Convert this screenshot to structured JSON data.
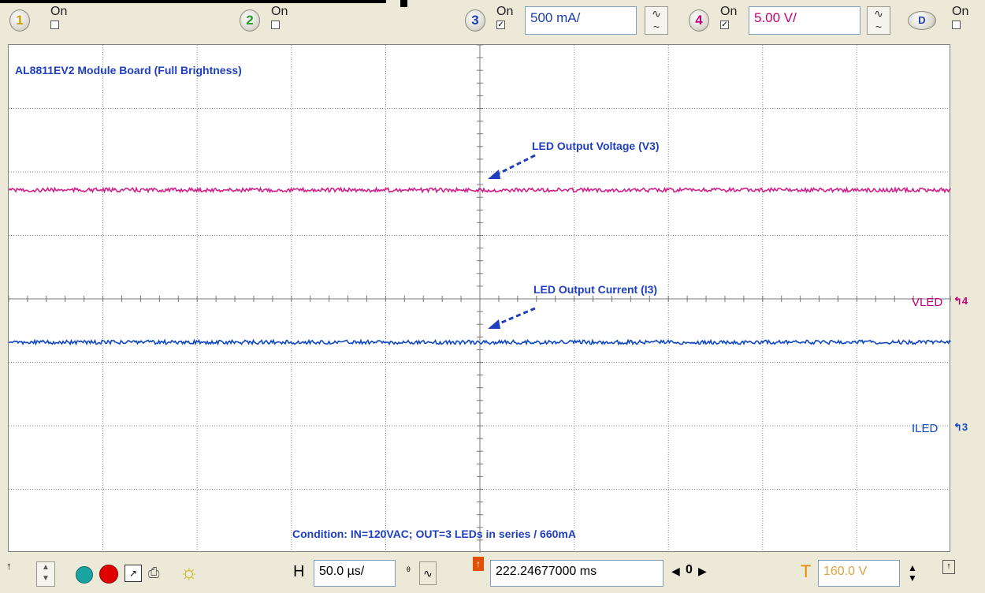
{
  "channels": [
    {
      "num": "1",
      "on_label": "On",
      "checked": "",
      "color": "#c8a000"
    },
    {
      "num": "2",
      "on_label": "On",
      "checked": "",
      "color": "#2a9a2a"
    },
    {
      "num": "3",
      "on_label": "On",
      "checked": "✓",
      "color": "#1a3fb0",
      "scale": "500 mA/"
    },
    {
      "num": "4",
      "on_label": "On",
      "checked": "✓",
      "color": "#c0007a",
      "scale": "5.00 V/"
    },
    {
      "num": "D",
      "on_label": "On",
      "checked": "",
      "color": "#1a3fb0"
    }
  ],
  "plot": {
    "title": "AL8811EV2 Module Board (Full Brightness)",
    "annotation_voltage": "LED Output Voltage (V3)",
    "annotation_current": "LED Output Current (I3)",
    "condition": "Condition: IN=120VAC; OUT=3 LEDs in series / 660mA",
    "label_vled": "VLED",
    "label_vled_marker": "4",
    "label_iled": "ILED",
    "label_iled_marker": "3",
    "vled_color": "#d0208a",
    "iled_color": "#1048c0"
  },
  "bottom": {
    "h_label": "H",
    "timebase": "50.0 µs/",
    "trigger_position": "222.24677000 ms",
    "zero_label": "0",
    "t_label": "T",
    "trigger_level": "160.0 V"
  }
}
